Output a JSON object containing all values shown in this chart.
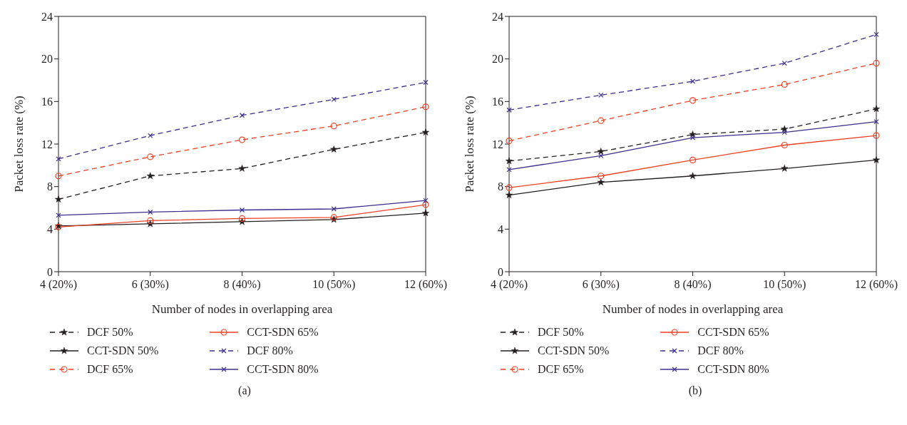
{
  "chart_data": [
    {
      "type": "line",
      "xlabel": "Number of nodes in overlapping area",
      "ylabel": "Packet loss rate (%)",
      "categories": [
        "4 (20%)",
        "6 (30%)",
        "8 (40%)",
        "10 (50%)",
        "12 (60%)"
      ],
      "ylim": [
        0,
        24
      ],
      "yticks": [
        0,
        4,
        8,
        12,
        16,
        20,
        24
      ],
      "grid": false,
      "legend": "bottom",
      "annotations": [
        "(a)"
      ],
      "series": [
        {
          "name": "DCF 50%",
          "color": "#231f20",
          "marker": "star",
          "line_style": "dashed",
          "values": [
            6.8,
            9.0,
            9.7,
            11.5,
            13.1
          ]
        },
        {
          "name": "CCT-SDN 50%",
          "color": "#231f20",
          "marker": "star",
          "line_style": "solid",
          "values": [
            4.3,
            4.5,
            4.7,
            4.9,
            5.5
          ]
        },
        {
          "name": "DCF 65%",
          "color": "#ef4023",
          "marker": "circle",
          "line_style": "dashed",
          "values": [
            9.0,
            10.8,
            12.4,
            13.7,
            15.5
          ]
        },
        {
          "name": "CCT-SDN 65%",
          "color": "#ef4023",
          "marker": "circle",
          "line_style": "solid",
          "values": [
            4.2,
            4.8,
            5.0,
            5.1,
            6.3
          ]
        },
        {
          "name": "DCF 80%",
          "color": "#3b2f8f",
          "marker": "cross",
          "line_style": "dashed",
          "values": [
            10.6,
            12.8,
            14.7,
            16.2,
            17.8
          ]
        },
        {
          "name": "CCT-SDN 80%",
          "color": "#3b2f8f",
          "marker": "cross",
          "line_style": "solid",
          "values": [
            5.3,
            5.6,
            5.8,
            5.9,
            6.7
          ]
        }
      ]
    },
    {
      "type": "line",
      "xlabel": "Number of nodes in overlapping area",
      "ylabel": "Packet loss rate (%)",
      "categories": [
        "4 (20%)",
        "6 (30%)",
        "8 (40%)",
        "10 (50%)",
        "12 (60%)"
      ],
      "ylim": [
        0,
        24
      ],
      "yticks": [
        0,
        4,
        8,
        12,
        16,
        20,
        24
      ],
      "grid": false,
      "legend": "bottom",
      "annotations": [
        "(b)"
      ],
      "series": [
        {
          "name": "DCF 50%",
          "color": "#231f20",
          "marker": "star",
          "line_style": "dashed",
          "values": [
            10.4,
            11.3,
            12.9,
            13.4,
            15.3
          ]
        },
        {
          "name": "CCT-SDN 50%",
          "color": "#231f20",
          "marker": "star",
          "line_style": "solid",
          "values": [
            7.2,
            8.4,
            9.0,
            9.7,
            10.5
          ]
        },
        {
          "name": "DCF 65%",
          "color": "#ef4023",
          "marker": "circle",
          "line_style": "dashed",
          "values": [
            12.3,
            14.2,
            16.1,
            17.6,
            19.6
          ]
        },
        {
          "name": "CCT-SDN 65%",
          "color": "#ef4023",
          "marker": "circle",
          "line_style": "solid",
          "values": [
            7.9,
            9.0,
            10.5,
            11.9,
            12.8
          ]
        },
        {
          "name": "DCF 80%",
          "color": "#3b2f8f",
          "marker": "cross",
          "line_style": "dashed",
          "values": [
            15.2,
            16.6,
            17.9,
            19.6,
            22.3
          ]
        },
        {
          "name": "CCT-SDN 80%",
          "color": "#3b2f8f",
          "marker": "cross",
          "line_style": "solid",
          "values": [
            9.6,
            10.9,
            12.6,
            13.1,
            14.1
          ]
        }
      ]
    }
  ]
}
